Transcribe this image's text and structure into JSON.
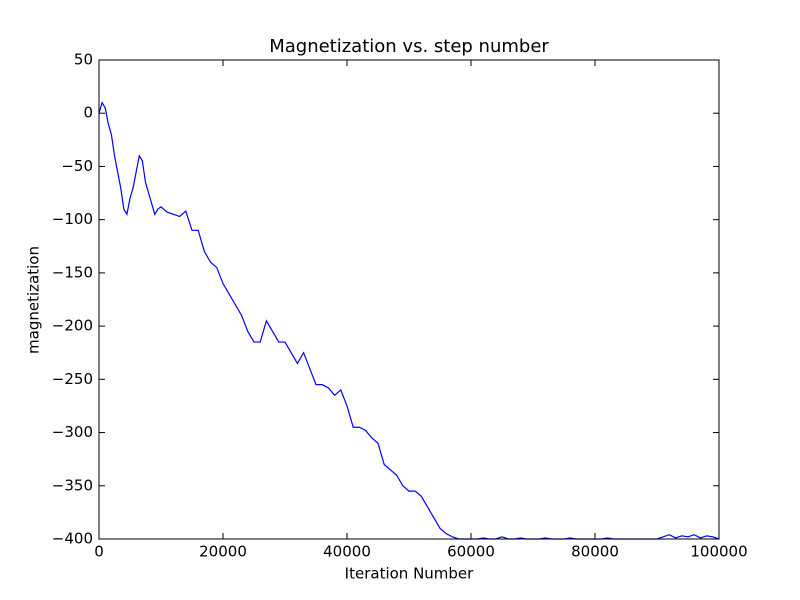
{
  "chart_data": {
    "type": "line",
    "title": "Magnetization vs. step number",
    "x_label": "Iteration Number",
    "y_label": "magnetization",
    "x": [
      0,
      500,
      1000,
      1500,
      2000,
      2500,
      3000,
      3500,
      4000,
      4500,
      5000,
      5500,
      6000,
      6500,
      7000,
      7500,
      8000,
      8500,
      9000,
      9500,
      10000,
      11000,
      12000,
      13000,
      14000,
      15000,
      16000,
      17000,
      18000,
      19000,
      20000,
      21000,
      22000,
      23000,
      24000,
      25000,
      26000,
      27000,
      28000,
      29000,
      30000,
      31000,
      32000,
      33000,
      34000,
      35000,
      36000,
      37000,
      38000,
      39000,
      40000,
      41000,
      42000,
      43000,
      44000,
      45000,
      46000,
      47000,
      48000,
      49000,
      50000,
      51000,
      52000,
      53000,
      54000,
      55000,
      56000,
      57000,
      58000,
      59000,
      60000,
      61000,
      62000,
      63000,
      64000,
      65000,
      66000,
      67000,
      68000,
      69000,
      70000,
      71000,
      72000,
      73000,
      74000,
      75000,
      76000,
      77000,
      78000,
      79000,
      80000,
      81000,
      82000,
      83000,
      84000,
      85000,
      86000,
      87000,
      88000,
      89000,
      90000,
      91000,
      92000,
      93000,
      94000,
      95000,
      96000,
      97000,
      98000,
      99000,
      100000
    ],
    "series": [
      {
        "name": "magnetization",
        "color": "#0000ff",
        "values": [
          0,
          10,
          5,
          -10,
          -20,
          -40,
          -55,
          -70,
          -90,
          -95,
          -80,
          -70,
          -55,
          -40,
          -45,
          -65,
          -75,
          -85,
          -95,
          -90,
          -88,
          -93,
          -95,
          -97,
          -92,
          -110,
          -110,
          -130,
          -140,
          -145,
          -160,
          -170,
          -180,
          -190,
          -205,
          -215,
          -215,
          -195,
          -205,
          -215,
          -215,
          -225,
          -235,
          -225,
          -240,
          -255,
          -255,
          -258,
          -265,
          -260,
          -275,
          -295,
          -295,
          -298,
          -305,
          -310,
          -330,
          -335,
          -340,
          -350,
          -355,
          -355,
          -360,
          -370,
          -380,
          -390,
          -395,
          -398,
          -400,
          -400,
          -400,
          -400,
          -399,
          -400,
          -400,
          -398,
          -400,
          -400,
          -399,
          -400,
          -400,
          -400,
          -399,
          -400,
          -400,
          -400,
          -399,
          -400,
          -400,
          -400,
          -400,
          -400,
          -399,
          -400,
          -400,
          -400,
          -400,
          -400,
          -400,
          -400,
          -400,
          -398,
          -396,
          -399,
          -397,
          -398,
          -396,
          -399,
          -397,
          -398,
          -400
        ]
      }
    ],
    "xlim": [
      0,
      100000
    ],
    "xticks": [
      0,
      20000,
      40000,
      60000,
      80000,
      100000
    ],
    "ylim": [
      -400,
      50
    ],
    "yticks": [
      {
        "value": -400,
        "label": "−400"
      },
      {
        "value": -350,
        "label": "−350"
      },
      {
        "value": -300,
        "label": "−300"
      },
      {
        "value": -250,
        "label": "−250"
      },
      {
        "value": -200,
        "label": "−200"
      },
      {
        "value": -150,
        "label": "−150"
      },
      {
        "value": -100,
        "label": "−100"
      },
      {
        "value": -50,
        "label": "−50"
      },
      0,
      50
    ],
    "grid": false
  }
}
